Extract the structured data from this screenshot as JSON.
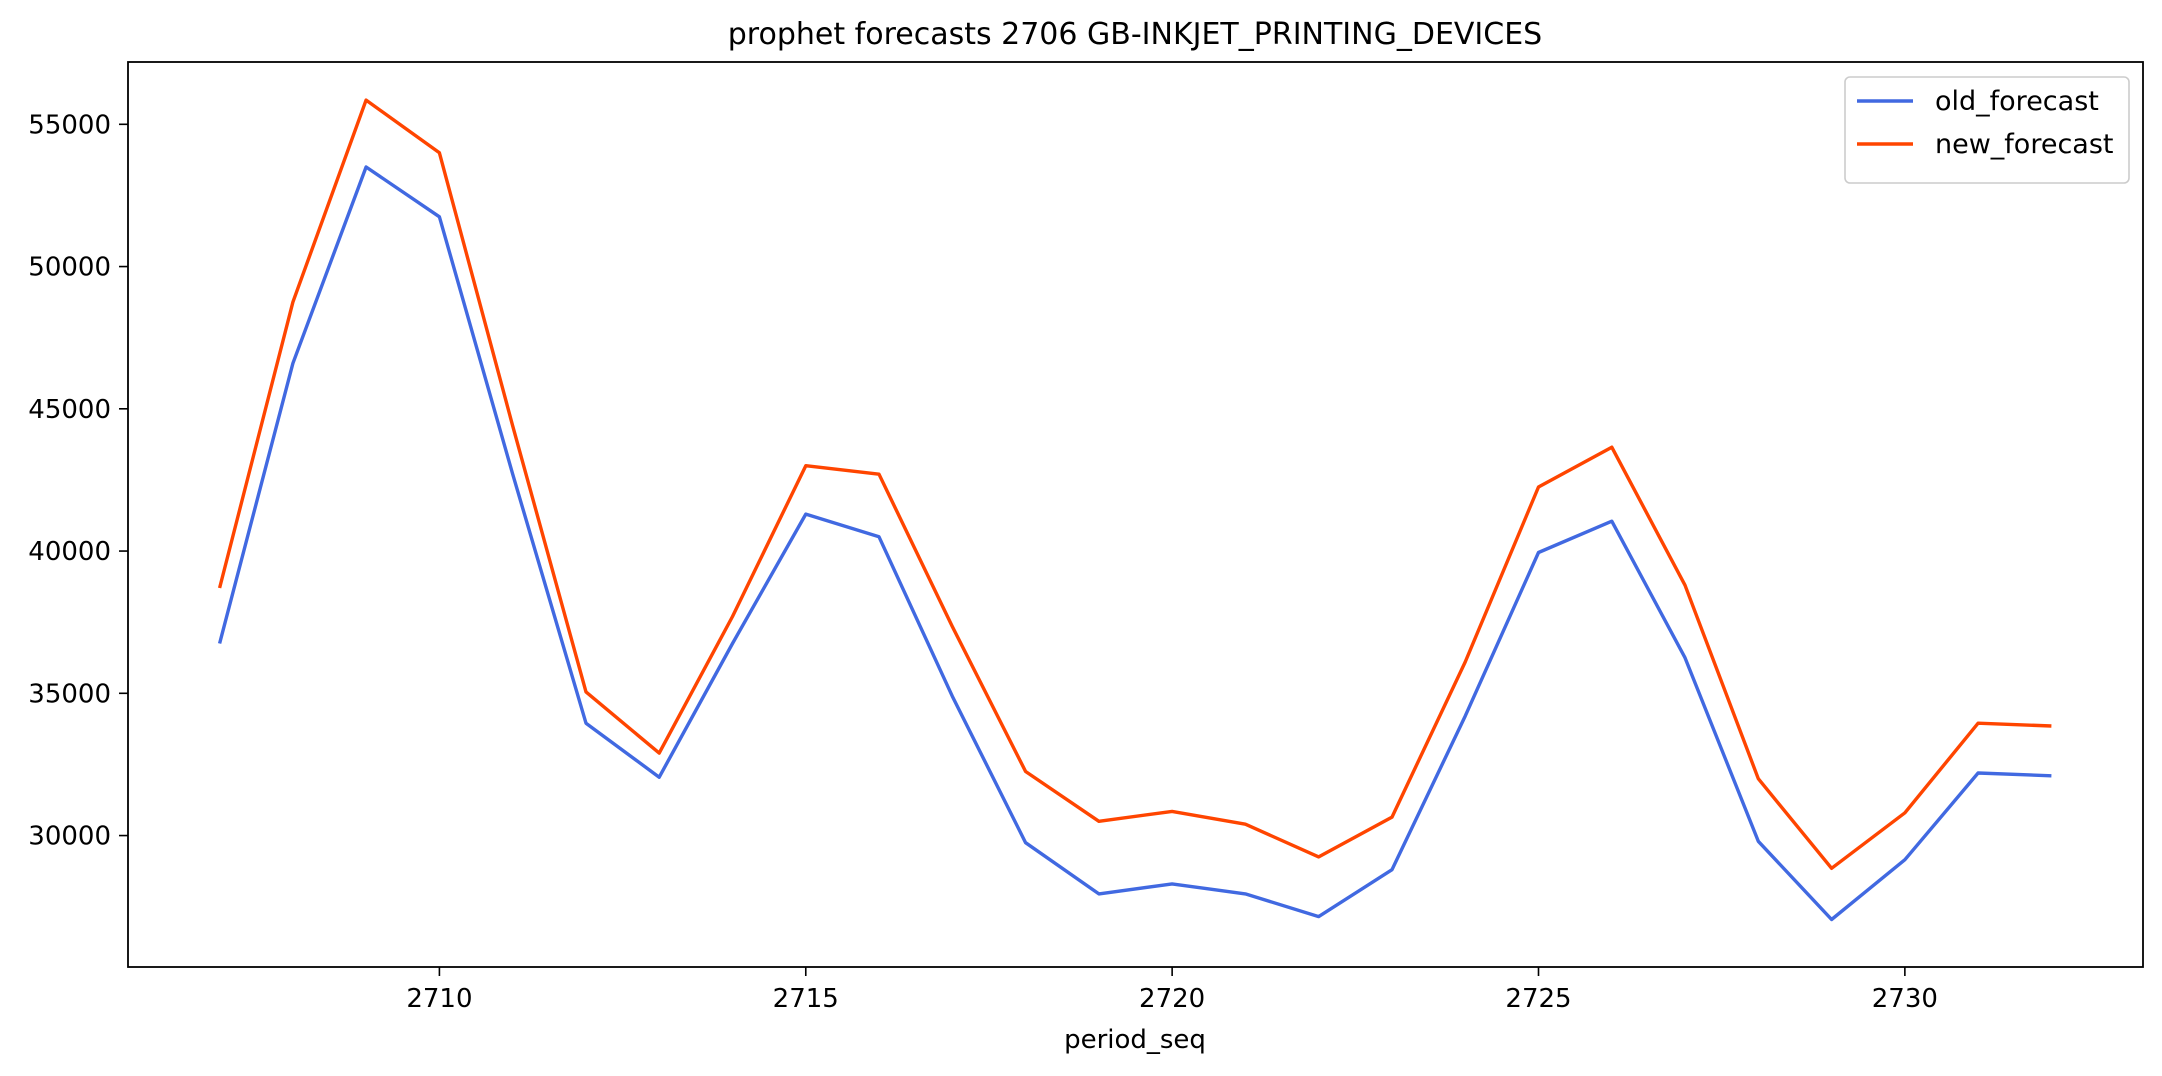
{
  "chart_data": {
    "type": "line",
    "title": "prophet forecasts 2706 GB-INKJET_PRINTING_DEVICES",
    "xlabel": "period_seq",
    "ylabel": "",
    "x": [
      2707,
      2708,
      2709,
      2710,
      2711,
      2712,
      2713,
      2714,
      2715,
      2716,
      2717,
      2718,
      2719,
      2720,
      2721,
      2722,
      2723,
      2724,
      2725,
      2726,
      2727,
      2728,
      2729,
      2730,
      2731,
      2732
    ],
    "xlim": [
      2705.75,
      2733.25
    ],
    "ylim": [
      25380,
      57190
    ],
    "xticks": [
      2710,
      2715,
      2720,
      2725,
      2730
    ],
    "yticks": [
      30000,
      35000,
      40000,
      45000,
      50000,
      55000
    ],
    "grid": false,
    "legend_position": "top-right",
    "series": [
      {
        "name": "old_forecast",
        "color": "#4169e1",
        "values": [
          36750,
          46600,
          53500,
          51750,
          42700,
          33950,
          32050,
          36750,
          41300,
          40500,
          34900,
          29750,
          27950,
          28300,
          27950,
          27150,
          28800,
          34200,
          39950,
          41050,
          36250,
          29800,
          27050,
          29150,
          32200,
          32100
        ]
      },
      {
        "name": "new_forecast",
        "color": "#ff4500",
        "values": [
          38700,
          48750,
          55850,
          54000,
          44400,
          35050,
          32900,
          37700,
          43000,
          42700,
          37350,
          32250,
          30500,
          30850,
          30400,
          29250,
          30650,
          36100,
          42250,
          43650,
          38800,
          32000,
          28850,
          30800,
          33950,
          33850
        ]
      }
    ]
  }
}
